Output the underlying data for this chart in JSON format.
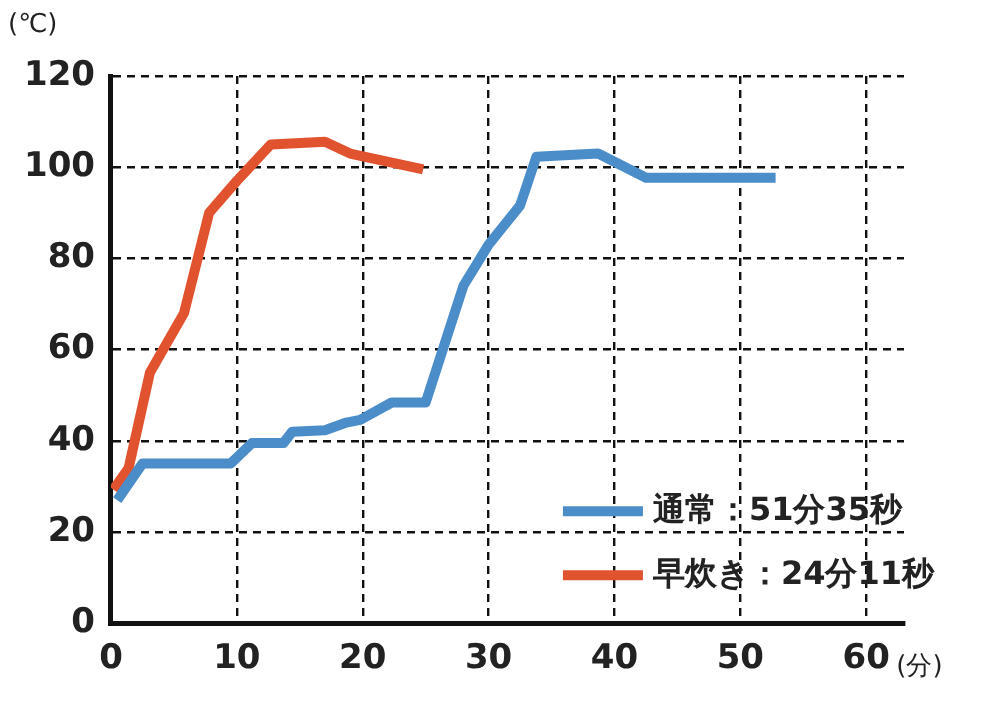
{
  "chart_data": {
    "type": "line",
    "ylabel": "(℃)",
    "xlabel": "(分)",
    "xlim": [
      0,
      63
    ],
    "xticks": [
      0,
      10,
      20,
      30,
      40,
      50,
      60
    ],
    "ylim": [
      0,
      120
    ],
    "yticks": [
      0,
      20,
      40,
      60,
      80,
      100,
      120
    ],
    "grid": true,
    "line_style": "solid",
    "marker": "none",
    "legend": "bottom right",
    "series": [
      {
        "name": "通常：51分35秒",
        "color": "#4a8dc8",
        "x": [
          0.5,
          2.5,
          9.5,
          11.2,
          13.7,
          14.4,
          17,
          18.7,
          19.8,
          22.3,
          25,
          28,
          30,
          32.5,
          33.8,
          38.7,
          42.5,
          52.8
        ],
        "values": [
          27,
          35,
          35,
          39.5,
          39.5,
          42,
          42.3,
          44,
          44.6,
          48.4,
          48.4,
          74,
          83,
          91.6,
          102.3,
          103,
          97.7,
          97.7
        ]
      },
      {
        "name": "早炊き：24分11秒",
        "color": "#e0532e",
        "x": [
          0.2,
          1.4,
          3.1,
          5.8,
          7.8,
          10,
          12.7,
          17,
          19,
          24.8
        ],
        "values": [
          29.3,
          34,
          55,
          68,
          90,
          97,
          105,
          105.6,
          103,
          99.5
        ]
      }
    ]
  }
}
